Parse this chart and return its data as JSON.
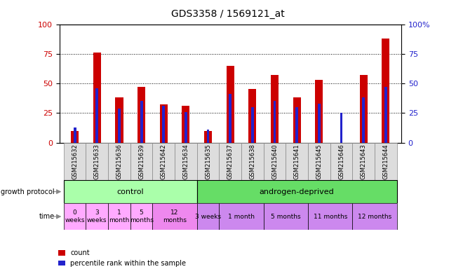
{
  "title": "GDS3358 / 1569121_at",
  "samples": [
    "GSM215632",
    "GSM215633",
    "GSM215636",
    "GSM215639",
    "GSM215642",
    "GSM215634",
    "GSM215635",
    "GSM215637",
    "GSM215638",
    "GSM215640",
    "GSM215641",
    "GSM215645",
    "GSM215646",
    "GSM215643",
    "GSM215644"
  ],
  "red_values": [
    10,
    76,
    38,
    47,
    32,
    31,
    10,
    65,
    45,
    57,
    38,
    53,
    0,
    57,
    88
  ],
  "blue_values": [
    13,
    46,
    29,
    35,
    31,
    26,
    11,
    41,
    30,
    35,
    30,
    33,
    25,
    38,
    47
  ],
  "red_color": "#cc0000",
  "blue_color": "#2222cc",
  "left_axis_color": "#cc0000",
  "right_axis_color": "#2222cc",
  "ylim": [
    0,
    100
  ],
  "yticks": [
    0,
    25,
    50,
    75,
    100
  ],
  "bg_color": "#ffffff",
  "control_color": "#aaffaa",
  "androgen_color": "#66dd66",
  "time_color_light": "#ffaaff",
  "time_color_dark": "#ee88ee",
  "time_color_purple": "#cc88ee",
  "label_fontsize": 7,
  "tick_fontsize": 6.5
}
